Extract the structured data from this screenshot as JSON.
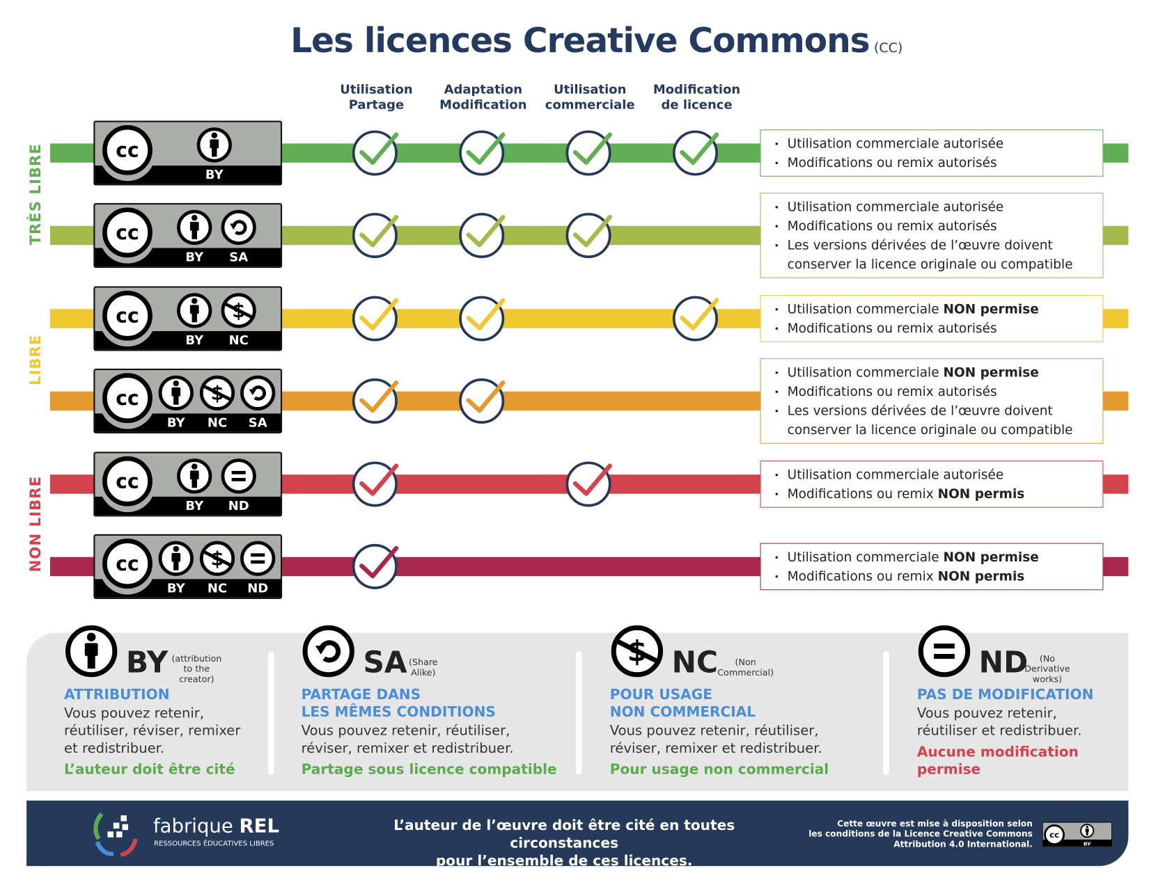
{
  "title": {
    "main": "Les licences Creative Commons",
    "suffix": "(CC)"
  },
  "columns": [
    [
      "Utilisation",
      "Partage"
    ],
    [
      "Adaptation",
      "Modification"
    ],
    [
      "Utilisation",
      "commerciale"
    ],
    [
      "Modification",
      "de licence"
    ]
  ],
  "categories": [
    {
      "label": "TRÈS LIBRE",
      "color": "#62ae55"
    },
    {
      "label": "LIBRE",
      "color": "#f0c930"
    },
    {
      "label": "NON LIBRE",
      "color": "#d2434b"
    }
  ],
  "colors": {
    "navy": "#243a5e",
    "check_ring": "#253858",
    "badge_grey": "#abaea8"
  },
  "rows": [
    {
      "modules": [
        "BY"
      ],
      "color": "#62ae55",
      "checks": [
        true,
        true,
        true,
        true
      ],
      "bullets": [
        [
          {
            "t": "Utilisation commerciale autorisée"
          }
        ],
        [
          {
            "t": "Modifications ou remix autorisés"
          }
        ]
      ]
    },
    {
      "modules": [
        "BY",
        "SA"
      ],
      "color": "#a3bb4a",
      "checks": [
        true,
        true,
        true,
        false
      ],
      "bullets": [
        [
          {
            "t": "Utilisation commerciale autorisée"
          }
        ],
        [
          {
            "t": "Modifications ou remix autorisés"
          }
        ],
        [
          {
            "t": "Les versions dérivées de l’œuvre doivent conserver la licence originale ou compatible"
          }
        ]
      ]
    },
    {
      "modules": [
        "BY",
        "NC"
      ],
      "color": "#f0c930",
      "checks": [
        true,
        true,
        false,
        true
      ],
      "bullets": [
        [
          {
            "t": "Utilisation commerciale "
          },
          {
            "t": "NON permise",
            "b": true
          }
        ],
        [
          {
            "t": "Modifications ou remix autorisés"
          }
        ]
      ]
    },
    {
      "modules": [
        "BY",
        "NC",
        "SA"
      ],
      "color": "#e39b30",
      "checks": [
        true,
        true,
        false,
        false
      ],
      "bullets": [
        [
          {
            "t": "Utilisation commerciale "
          },
          {
            "t": "NON permise",
            "b": true
          }
        ],
        [
          {
            "t": "Modifications ou remix autorisés"
          }
        ],
        [
          {
            "t": "Les versions dérivées de l’œuvre doivent conserver la licence originale ou compatible"
          }
        ]
      ]
    },
    {
      "modules": [
        "BY",
        "ND"
      ],
      "color": "#d2434b",
      "checks": [
        true,
        false,
        true,
        false
      ],
      "bullets": [
        [
          {
            "t": "Utilisation commerciale autorisée"
          }
        ],
        [
          {
            "t": "Modifications ou remix "
          },
          {
            "t": "NON permis",
            "b": true
          }
        ]
      ]
    },
    {
      "modules": [
        "BY",
        "NC",
        "ND"
      ],
      "color": "#a7284a",
      "checks": [
        true,
        false,
        false,
        false
      ],
      "bullets": [
        [
          {
            "t": "Utilisation commerciale "
          },
          {
            "t": "NON permise",
            "b": true
          }
        ],
        [
          {
            "t": "Modifications ou remix "
          },
          {
            "t": "NON permis",
            "b": true
          }
        ]
      ]
    }
  ],
  "features": [
    {
      "code": "BY",
      "icon": "by-icon",
      "note": [
        "(attribution to the",
        "creator)"
      ],
      "heading": [
        "ATTRIBUTION"
      ],
      "body": [
        "Vous pouvez retenir,",
        "réutiliser, réviser, remixer",
        "et redistribuer."
      ],
      "conclusion": [
        "L’auteur doit être cité"
      ],
      "conclusion_color": "#5aab4a"
    },
    {
      "code": "SA",
      "icon": "sa-icon",
      "note": [
        "(Share Alike)"
      ],
      "heading": [
        "PARTAGE DANS",
        "LES MÊMES CONDITIONS"
      ],
      "body": [
        "Vous pouvez retenir, réutiliser,",
        "réviser, remixer et redistribuer."
      ],
      "conclusion": [
        "Partage sous licence compatible"
      ],
      "conclusion_color": "#5aab4a"
    },
    {
      "code": "NC",
      "icon": "nc-icon",
      "note": [
        "(Non Commercial)"
      ],
      "heading": [
        "POUR USAGE",
        "NON COMMERCIAL"
      ],
      "body": [
        "Vous pouvez retenir, réutiliser,",
        "réviser, remixer et redistribuer."
      ],
      "conclusion": [
        "Pour usage non commercial"
      ],
      "conclusion_color": "#5aab4a"
    },
    {
      "code": "ND",
      "icon": "nd-icon",
      "note": [
        "(No Derivative",
        "works)"
      ],
      "heading": [
        "PAS DE MODIFICATION"
      ],
      "body": [
        "Vous pouvez retenir,",
        "réutiliser et redistribuer."
      ],
      "conclusion": [
        "Aucune modification",
        "permise"
      ],
      "conclusion_color": "#d2434b"
    }
  ],
  "footer": {
    "brand_light": "fabrique",
    "brand_bold": "REL",
    "brand_sub": "RESSOURCES ÉDUCATIVES LIBRES",
    "main": [
      "L’auteur de l’œuvre doit être cité en toutes circonstances",
      "pour l’ensemble de ces licences."
    ],
    "license_text": [
      "Cette œuvre est mise à disposition selon",
      "les conditions de la Licence Creative Commons",
      "Attribution 4.0 International."
    ],
    "license_badge": "BY",
    "background": "#253a5a"
  }
}
